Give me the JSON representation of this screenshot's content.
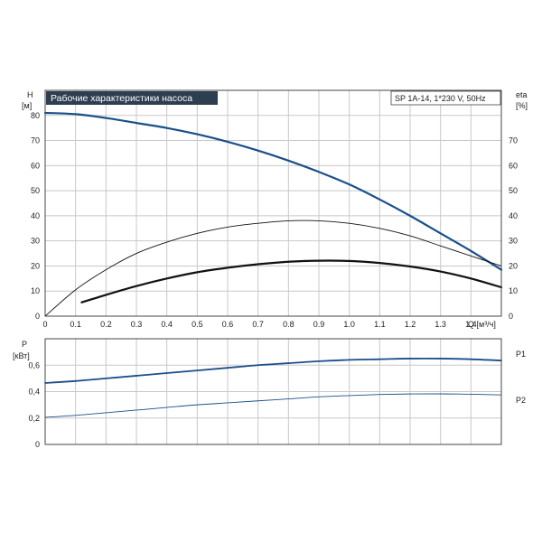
{
  "colors": {
    "curve_blue": "#1a4f8a",
    "curve_black": "#111111",
    "title_bg": "#2d3e50",
    "title_text": "#ffffff",
    "grid": "#c8c8c8"
  },
  "chart_data": [
    {
      "type": "line",
      "title": "Рабочие характеристики насоса",
      "subtitle": "SP 1A-14, 1*230 V, 50Hz",
      "xlabel": "Q [м³/ч]",
      "ylabel_left": {
        "symbol": "H",
        "unit": "[м]"
      },
      "ylabel_right": {
        "symbol": "eta",
        "unit": "[%]"
      },
      "xlim": [
        0,
        1.5
      ],
      "ylim": [
        0,
        90
      ],
      "grid": true,
      "x_ticks": [
        "0",
        "0.1",
        "0.2",
        "0.3",
        "0.4",
        "0.5",
        "0.6",
        "0.7",
        "0.8",
        "0.9",
        "1.0",
        "1.1",
        "1.2",
        "1.3",
        "1.4"
      ],
      "y_ticks_left": [
        "0",
        "10",
        "20",
        "30",
        "40",
        "50",
        "60",
        "70",
        "80"
      ],
      "y_ticks_right": [
        "0",
        "10",
        "20",
        "30",
        "40",
        "50",
        "60",
        "70"
      ],
      "series": [
        {
          "color": "#1a4f8a",
          "width": 2.2,
          "x": [
            0,
            0.1,
            0.2,
            0.3,
            0.4,
            0.5,
            0.6,
            0.7,
            0.8,
            0.9,
            1.0,
            1.1,
            1.2,
            1.3,
            1.4,
            1.5
          ],
          "y": [
            81,
            80.5,
            79,
            77,
            75,
            72.5,
            69.5,
            66,
            62,
            57.5,
            52.5,
            46.5,
            40,
            33,
            26,
            18.5
          ]
        },
        {
          "color": "#111111",
          "width": 0.9,
          "x": [
            0,
            0.1,
            0.2,
            0.3,
            0.4,
            0.5,
            0.6,
            0.7,
            0.8,
            0.9,
            1.0,
            1.1,
            1.2,
            1.3,
            1.4,
            1.5
          ],
          "y": [
            0,
            10.5,
            18.5,
            25,
            29.5,
            33,
            35.5,
            37,
            38,
            38,
            37,
            35,
            32,
            28,
            24,
            20
          ]
        },
        {
          "color": "#111111",
          "width": 2.2,
          "x": [
            0.12,
            0.2,
            0.3,
            0.4,
            0.5,
            0.6,
            0.7,
            0.8,
            0.9,
            1.0,
            1.1,
            1.2,
            1.3,
            1.4,
            1.5
          ],
          "y": [
            5.5,
            8.5,
            12,
            15,
            17.5,
            19.3,
            20.7,
            21.7,
            22.1,
            22,
            21.2,
            19.8,
            17.8,
            15,
            11.5
          ]
        }
      ]
    },
    {
      "type": "line",
      "xlabel": "",
      "ylabel": {
        "symbol": "P",
        "unit": "[кВт]"
      },
      "xlim": [
        0,
        1.5
      ],
      "ylim": [
        0,
        0.8
      ],
      "grid": true,
      "y_ticks": [
        "0",
        "0,2",
        "0,4",
        "0,6"
      ],
      "series": [
        {
          "name": "P1",
          "color": "#1a4f8a",
          "width": 1.8,
          "x": [
            0,
            0.1,
            0.2,
            0.3,
            0.4,
            0.5,
            0.6,
            0.7,
            0.8,
            0.9,
            1.0,
            1.1,
            1.2,
            1.3,
            1.4,
            1.5
          ],
          "y": [
            0.465,
            0.48,
            0.5,
            0.52,
            0.54,
            0.56,
            0.58,
            0.6,
            0.615,
            0.63,
            0.64,
            0.645,
            0.65,
            0.65,
            0.645,
            0.635
          ]
        },
        {
          "name": "P2",
          "color": "#1a4f8a",
          "width": 0.9,
          "x": [
            0,
            0.1,
            0.2,
            0.3,
            0.4,
            0.5,
            0.6,
            0.7,
            0.8,
            0.9,
            1.0,
            1.1,
            1.2,
            1.3,
            1.4,
            1.5
          ],
          "y": [
            0.205,
            0.22,
            0.24,
            0.26,
            0.28,
            0.3,
            0.315,
            0.33,
            0.345,
            0.36,
            0.37,
            0.378,
            0.382,
            0.383,
            0.38,
            0.375
          ]
        }
      ]
    }
  ]
}
